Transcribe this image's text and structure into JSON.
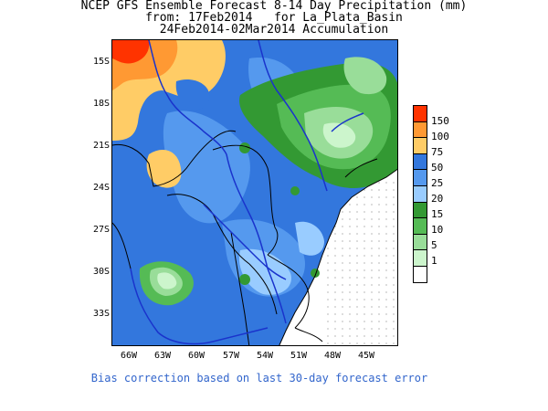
{
  "title": {
    "line1": "NCEP GFS Ensemble Forecast 8-14 Day Precipitation (mm)",
    "line2": "from: 17Feb2014   for La_Plata_Basin",
    "line3": "24Feb2014-02Mar2014 Accumulation"
  },
  "y_axis": [
    "15S",
    "18S",
    "21S",
    "24S",
    "27S",
    "30S",
    "33S"
  ],
  "x_axis": [
    "66W",
    "63W",
    "60W",
    "57W",
    "54W",
    "51W",
    "48W",
    "45W"
  ],
  "legend": {
    "labels": [
      "150",
      "100",
      "75",
      "50",
      "25",
      "20",
      "15",
      "10",
      "5",
      "1"
    ],
    "colors": [
      "#ff3300",
      "#ff9933",
      "#ffcc66",
      "#3377dd",
      "#5599ee",
      "#99ccff",
      "#339933",
      "#55bb55",
      "#99dd99",
      "#ccf5cc",
      "#ffffff"
    ]
  },
  "colors": {
    "ocean": "#ffffff",
    "border": "#000000",
    "rivers": "#1a33cc",
    "footer": "#3366cc"
  },
  "footer": "Bias correction based on last 30-day forecast error"
}
